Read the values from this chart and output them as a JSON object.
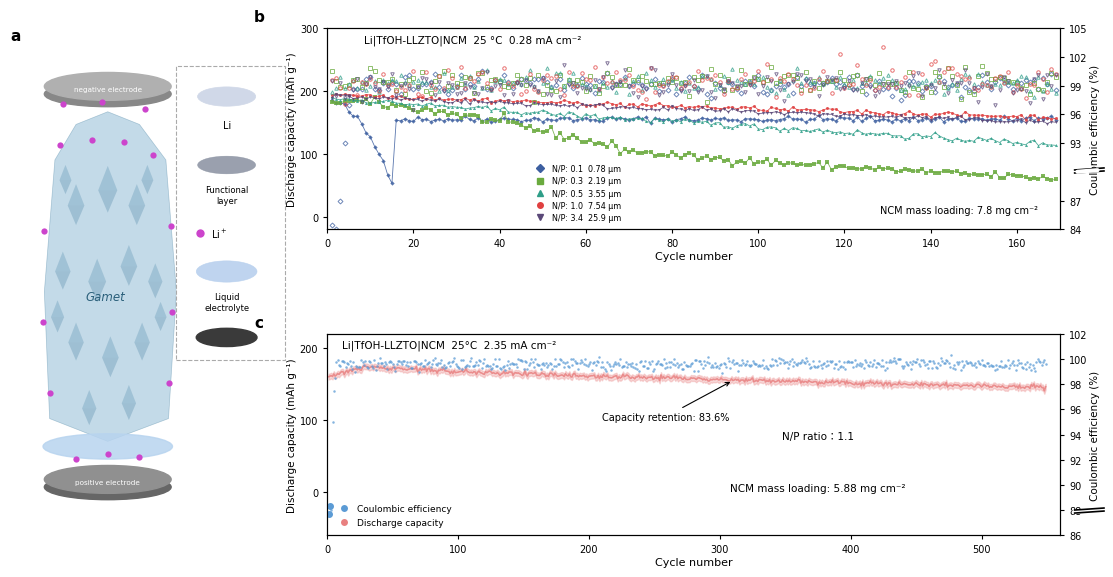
{
  "fig_width": 10.8,
  "fig_height": 5.73,
  "panel_b": {
    "title": "Li|TfOH-LLZTO|NCM  25 °C  0.28 mA cm⁻²",
    "xlabel": "Cycle number",
    "ylabel_left": "Discharge capacity (mAh g⁻¹)",
    "ylabel_right": "Coulombic efficiency (%)",
    "xlim": [
      0,
      170
    ],
    "ylim_left": [
      -20,
      300
    ],
    "ylim_right": [
      84,
      105
    ],
    "yticks_left": [
      0,
      100,
      200,
      300
    ],
    "yticks_right": [
      84,
      87,
      93,
      96,
      99,
      102,
      105
    ],
    "xticks": [
      0,
      20,
      40,
      60,
      80,
      100,
      120,
      140,
      160
    ],
    "annotation": "NCM mass loading: 7.8 mg cm⁻²",
    "colors": [
      "#4472c4",
      "#70ad47",
      "#70ad47",
      "#ff0000",
      "#7030a0"
    ],
    "colors_cap": [
      "#3d5fa0",
      "#6aaa3e",
      "#2e9e88",
      "#e04040",
      "#5a4878"
    ],
    "colors_ce": [
      "#3d5fa0",
      "#6aaa3e",
      "#2e9e88",
      "#e04040",
      "#5a4878"
    ],
    "markers_cap": [
      "D",
      "s",
      "^",
      "o",
      "v"
    ],
    "markers_ce": [
      "D",
      "s",
      "^",
      "o",
      "v"
    ],
    "legend_labels": [
      "N/P: 0.1  0.78 μm",
      "N/P: 0.3  2.19 μm",
      "N/P: 0.5  3.55 μm",
      "N/P: 1.0  7.54 μm",
      "N/P: 3.4  25.9 μm"
    ]
  },
  "panel_c": {
    "title": "Li|TfOH-LLZTO|NCM  25°C  2.35 mA cm⁻²",
    "xlabel": "Cycle number",
    "ylabel_left": "Discharge capacity (mAh g⁻¹)",
    "ylabel_right": "Coulombic efficiency (%)",
    "xlim": [
      0,
      560
    ],
    "ylim_left": [
      -60,
      220
    ],
    "ylim_right": [
      86,
      102
    ],
    "yticks_left": [
      0,
      100,
      200
    ],
    "yticks_right": [
      86,
      88,
      90,
      92,
      94,
      96,
      98,
      100,
      102
    ],
    "xticks": [
      0,
      100,
      200,
      300,
      400,
      500
    ],
    "annotation1": "Capacity retention: 83.6%",
    "annotation2": "N/P ratio： 1.1",
    "annotation3": "NCM mass loading: 5.88 mg cm⁻²",
    "color_ce": "#5b9bd5",
    "color_cap": "#e88080",
    "legend_labels": [
      "Coulombic efficiency",
      "Discharge capacity"
    ]
  }
}
